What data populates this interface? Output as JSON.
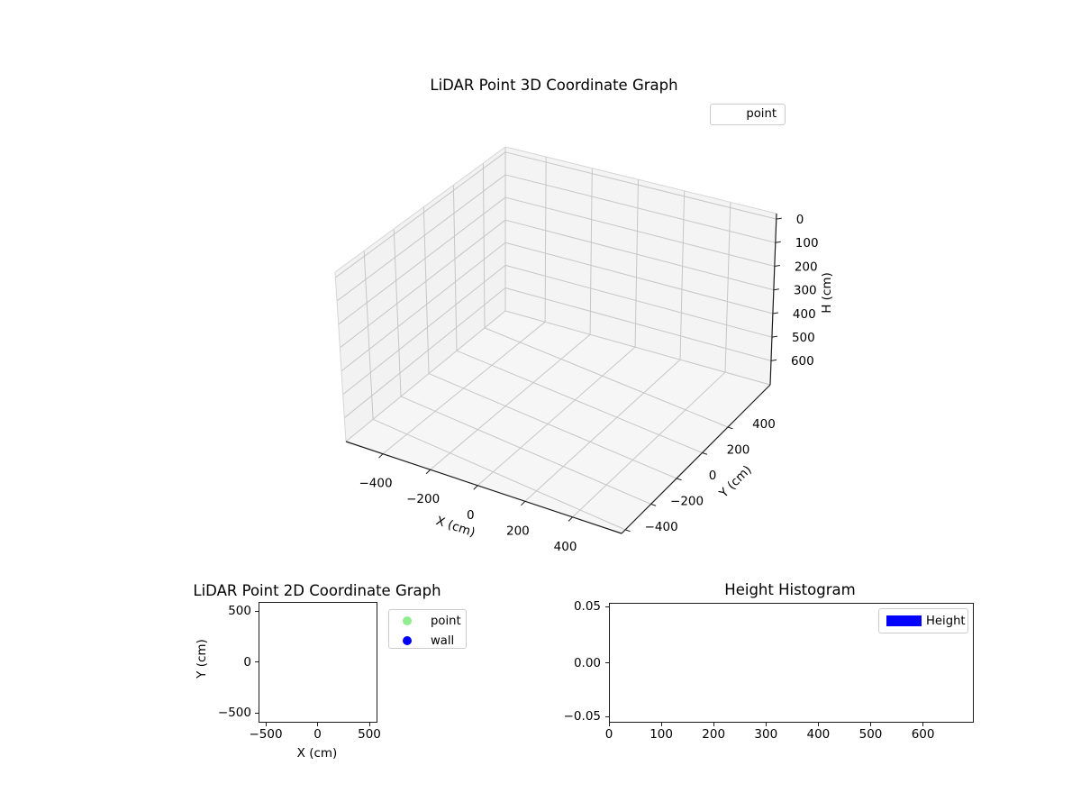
{
  "plot3d": {
    "title": "LiDAR Point 3D Coordinate Graph",
    "xlabel": "X (cm)",
    "ylabel": "Y (cm)",
    "zlabel": "H (cm)",
    "xticks": [
      "−400",
      "−200",
      "0",
      "200",
      "400"
    ],
    "yticks": [
      "−400",
      "−200",
      "0",
      "200",
      "400"
    ],
    "zticks": [
      "0",
      "100",
      "200",
      "300",
      "400",
      "500",
      "600"
    ],
    "legend_label": "point"
  },
  "plot2d": {
    "title": "LiDAR Point 2D Coordinate Graph",
    "xlabel": "X (cm)",
    "ylabel": "Y (cm)",
    "xticks": [
      "−500",
      "0",
      "500"
    ],
    "yticks": [
      "500",
      "0",
      "−500"
    ],
    "legend": [
      {
        "label": "point",
        "color": "#90ee90"
      },
      {
        "label": "wall",
        "color": "#0000ff"
      }
    ]
  },
  "hist": {
    "title": "Height Histogram",
    "xticks": [
      "0",
      "100",
      "200",
      "300",
      "400",
      "500",
      "600"
    ],
    "yticks": [
      "0.05",
      "0.00",
      "−0.05"
    ],
    "legend": [
      {
        "label": "Height",
        "color": "#0000ff"
      }
    ]
  },
  "colors": {
    "point": "#90ee90",
    "wall": "#0000ff",
    "height_bar": "#0000ff",
    "grid": "#c6c6c6",
    "pane_left": "#f2f2f2",
    "pane_right": "#f4f4f4",
    "pane_floor": "#f6f6f6"
  },
  "chart_data": [
    {
      "type": "scatter",
      "projection": "3d",
      "title": "LiDAR Point 3D Coordinate Graph",
      "xlabel": "X (cm)",
      "ylabel": "Y (cm)",
      "zlabel": "H (cm)",
      "xticks": [
        -400,
        -200,
        0,
        200,
        400
      ],
      "yticks": [
        -400,
        -200,
        0,
        200,
        400
      ],
      "zticks": [
        0,
        100,
        200,
        300,
        400,
        500,
        600
      ],
      "zaxis_inverted": true,
      "grid": true,
      "legend_entries": [
        "point"
      ],
      "legend_position": "upper right",
      "series": [
        {
          "name": "point",
          "points": []
        }
      ]
    },
    {
      "type": "scatter",
      "title": "LiDAR Point 2D Coordinate Graph",
      "xlabel": "X (cm)",
      "ylabel": "Y (cm)",
      "xticks": [
        -500,
        0,
        500
      ],
      "yticks": [
        -500,
        0,
        500
      ],
      "xlim": [
        -590,
        590
      ],
      "ylim": [
        -590,
        590
      ],
      "grid": false,
      "legend_entries": [
        "point",
        "wall"
      ],
      "legend_position": "outside upper right",
      "series": [
        {
          "name": "point",
          "color": "#90ee90",
          "points": []
        },
        {
          "name": "wall",
          "color": "#0000ff",
          "points": []
        }
      ]
    },
    {
      "type": "bar",
      "title": "Height Histogram",
      "xticks": [
        0,
        100,
        200,
        300,
        400,
        500,
        600
      ],
      "yticks": [
        0.05,
        0.0,
        -0.05
      ],
      "xlim": [
        0,
        697
      ],
      "ylim": [
        -0.05,
        0.05
      ],
      "grid": false,
      "legend_entries": [
        "Height"
      ],
      "legend_position": "upper right",
      "series": [
        {
          "name": "Height",
          "color": "#0000ff",
          "values": []
        }
      ]
    }
  ]
}
